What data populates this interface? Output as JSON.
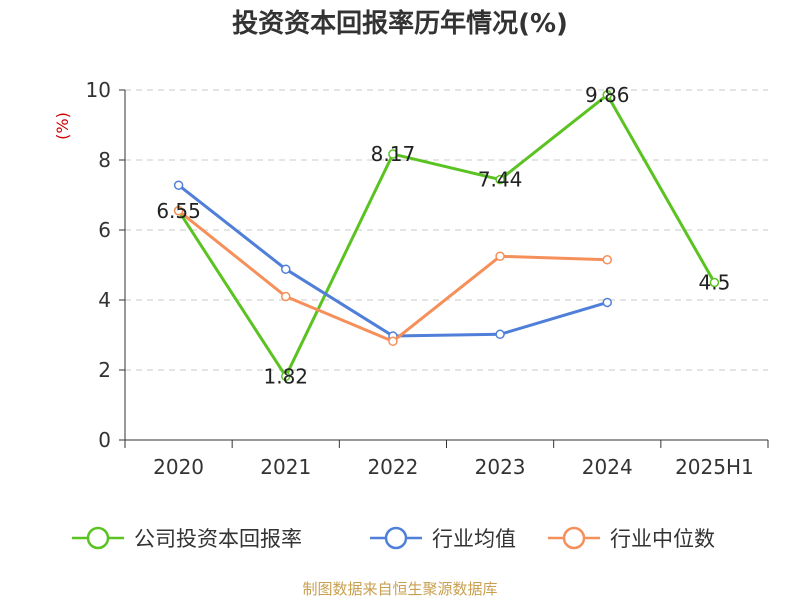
{
  "chart_data": {
    "type": "line",
    "title": "投资资本回报率历年情况(%)",
    "ylabel": "(%)",
    "xlabel": "",
    "categories": [
      "2020",
      "2021",
      "2022",
      "2023",
      "2024",
      "2025H1"
    ],
    "ylim": [
      0,
      10
    ],
    "yticks": [
      0,
      2,
      4,
      6,
      8,
      10
    ],
    "grid": true,
    "legend_position": "bottom",
    "series": [
      {
        "name": "公司投资本回报率",
        "color": "#5ac322",
        "values": [
          6.55,
          1.82,
          8.17,
          7.44,
          9.86,
          4.5
        ],
        "labels": [
          "6.55",
          "1.82",
          "8.17",
          "7.44",
          "9.86",
          "4.5"
        ]
      },
      {
        "name": "行业均值",
        "color": "#4f7fd8",
        "values": [
          7.28,
          4.88,
          2.97,
          3.02,
          3.93,
          null
        ]
      },
      {
        "name": "行业中位数",
        "color": "#f5905a",
        "values": [
          6.55,
          4.1,
          2.82,
          5.25,
          5.15,
          null
        ]
      }
    ]
  },
  "footer": {
    "source": "制图数据来自恒生聚源数据库"
  }
}
